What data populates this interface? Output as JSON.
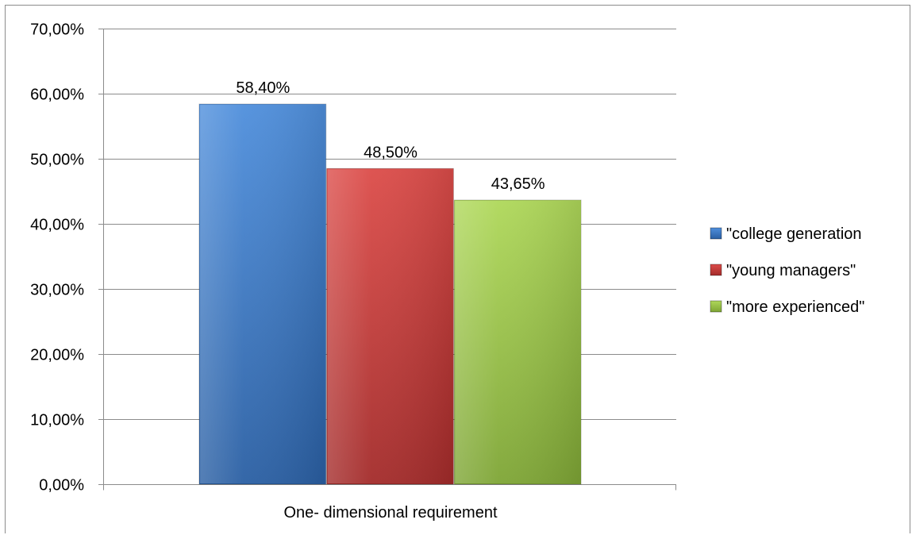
{
  "chart_data": {
    "type": "bar",
    "categories": [
      "One- dimensional requirement"
    ],
    "series": [
      {
        "name": "\"college generation",
        "values": [
          58.4
        ],
        "label": "58,40%",
        "color": "#3a7cc9"
      },
      {
        "name": "\"young managers\"",
        "values": [
          48.5
        ],
        "label": "48,50%",
        "color": "#cc3a38"
      },
      {
        "name": "\"more experienced\"",
        "values": [
          43.65
        ],
        "label": "43,65%",
        "color": "#9acc44"
      }
    ],
    "y_ticks": [
      {
        "value": 0,
        "label": "0,00%"
      },
      {
        "value": 10,
        "label": "10,00%"
      },
      {
        "value": 20,
        "label": "20,00%"
      },
      {
        "value": 30,
        "label": "30,00%"
      },
      {
        "value": 40,
        "label": "40,00%"
      },
      {
        "value": 50,
        "label": "50,00%"
      },
      {
        "value": 60,
        "label": "60,00%"
      },
      {
        "value": 70,
        "label": "70,00%"
      }
    ],
    "ylim": [
      0,
      70
    ],
    "grid": true,
    "legend": "right",
    "title": "",
    "xlabel": "",
    "ylabel": ""
  }
}
